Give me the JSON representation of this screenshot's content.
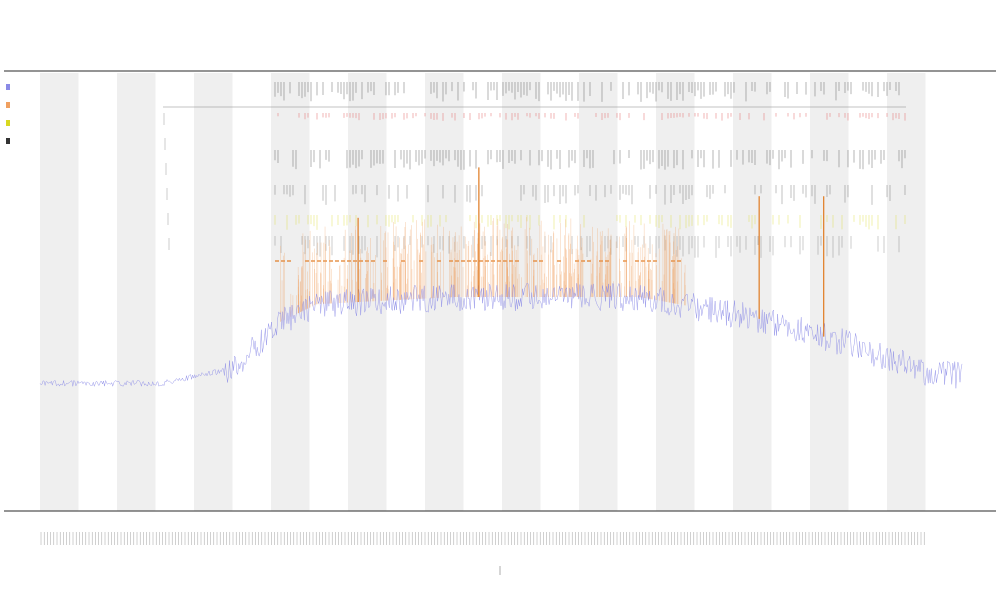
{
  "chart_data": {
    "type": "line",
    "title": "",
    "subtitle_lines": [],
    "xlabel": "",
    "ylabel": "",
    "grid": false,
    "banded_background": true,
    "legend_position": "top-left",
    "colors": {
      "coverage": "#8a8ae6",
      "peak": "#f0a060",
      "mark_red": "#e05050",
      "mark_yellow": "#d8d820",
      "mark_orange": "#e07a20",
      "mark_dark": "#333333",
      "band": "#efefef",
      "axis": "#555555"
    },
    "series": [
      {
        "key": "coverage",
        "profile": [
          {
            "x": 0.0,
            "y": 0.16
          },
          {
            "x": 0.13,
            "y": 0.16
          },
          {
            "x": 0.21,
            "y": 0.2
          },
          {
            "x": 0.26,
            "y": 0.33
          },
          {
            "x": 0.3,
            "y": 0.38
          },
          {
            "x": 0.45,
            "y": 0.4
          },
          {
            "x": 0.65,
            "y": 0.4
          },
          {
            "x": 0.8,
            "y": 0.33
          },
          {
            "x": 0.9,
            "y": 0.25
          },
          {
            "x": 0.96,
            "y": 0.19
          },
          {
            "x": 1.0,
            "y": 0.18
          }
        ]
      },
      {
        "key": "peak",
        "spikes": [
          {
            "x": 0.345,
            "y": 0.62
          },
          {
            "x": 0.476,
            "y": 0.76
          },
          {
            "x": 0.78,
            "y": 0.68
          },
          {
            "x": 0.85,
            "y": 0.68
          }
        ]
      }
    ],
    "x_range": [
      0,
      1
    ],
    "y_range": [
      0,
      1
    ]
  }
}
